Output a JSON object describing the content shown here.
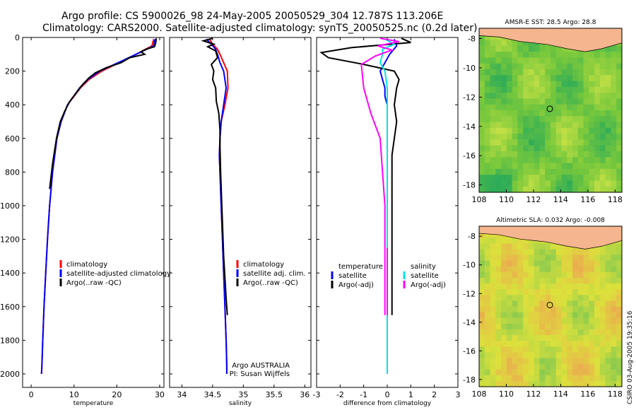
{
  "header": {
    "title_line1": "Argo profile: CS 5900026_98 24-May-2005 20050529_304 12.787S 113.206E",
    "title_line2": "Climatology: CARS2000. Satellite-adjusted climatology: synTS_20050525.nc (0.2d later)"
  },
  "colors": {
    "climatology": "#ff0000",
    "satellite": "#0000ff",
    "argo": "#000000",
    "salinity": "#00e5e5",
    "argo_salinity": "#ff00ff",
    "land": "#f5b58e"
  },
  "chart_data": [
    {
      "type": "line",
      "xlabel": "temperature",
      "ylabel": "",
      "xlim": [
        -2,
        31
      ],
      "ylim": [
        2080,
        0
      ],
      "xticks": [
        0,
        10,
        20,
        30
      ],
      "yticks": [
        0,
        200,
        400,
        600,
        800,
        1000,
        1200,
        1400,
        1600,
        1800,
        2000
      ],
      "legend": [
        "climatology",
        "satellite-adjusted climatology",
        "Argo(..raw -QC)"
      ],
      "series": [
        {
          "name": "climatology",
          "color": "#ff0000",
          "x": [
            28.6,
            28.2,
            24.5,
            20.5,
            16.5,
            13.5,
            11.5,
            10.0,
            8.5,
            7.0,
            6.0,
            5.0,
            4.3,
            3.8,
            3.4,
            3.0,
            2.7,
            2.5,
            2.4
          ],
          "y": [
            10,
            50,
            100,
            150,
            200,
            250,
            300,
            350,
            400,
            500,
            600,
            800,
            1000,
            1200,
            1400,
            1600,
            1800,
            1950,
            2000
          ]
        },
        {
          "name": "satellite-adjusted climatology",
          "color": "#0000ff",
          "x": [
            28.9,
            28.6,
            24.5,
            20.3,
            16.0,
            13.2,
            11.3,
            9.9,
            8.5,
            7.0,
            6.0,
            5.0,
            4.3,
            3.8,
            3.4,
            3.0,
            2.7,
            2.5,
            2.4
          ],
          "y": [
            10,
            50,
            100,
            150,
            200,
            250,
            300,
            350,
            400,
            500,
            600,
            800,
            1000,
            1200,
            1400,
            1600,
            1800,
            1950,
            2000
          ]
        },
        {
          "name": "Argo(..raw -QC)",
          "color": "#000000",
          "x": [
            29.2,
            29.1,
            28.8,
            26.8,
            25.6,
            26.5,
            23.0,
            21.0,
            17.5,
            15.0,
            13.5,
            12.0,
            10.5,
            9.0,
            7.8,
            6.8,
            5.9,
            5.0,
            4.3
          ],
          "y": [
            5,
            30,
            55,
            70,
            85,
            100,
            120,
            150,
            180,
            210,
            240,
            280,
            330,
            380,
            440,
            500,
            600,
            750,
            900
          ]
        }
      ]
    },
    {
      "type": "line",
      "xlabel": "salinity",
      "xlim": [
        33.8,
        36.1
      ],
      "ylim": [
        2080,
        0
      ],
      "xticks": [
        34,
        34.5,
        35,
        35.5,
        36
      ],
      "legend": [
        "climatology",
        "satellite adj. clim.",
        "Argo(..raw -QC)"
      ],
      "annotation": [
        "Argo AUSTRALIA",
        "PI: Susan Wijffels"
      ],
      "series": [
        {
          "name": "climatology",
          "color": "#ff0000",
          "x": [
            34.45,
            34.5,
            34.58,
            34.62,
            34.68,
            34.74,
            34.75,
            34.7,
            34.64,
            34.62,
            34.61,
            34.62,
            34.64,
            34.66,
            34.68,
            34.7,
            34.72,
            34.73,
            34.73
          ],
          "y": [
            10,
            40,
            70,
            100,
            150,
            200,
            300,
            400,
            500,
            600,
            700,
            800,
            1000,
            1200,
            1400,
            1600,
            1800,
            1950,
            2000
          ]
        },
        {
          "name": "satellite adj. clim.",
          "color": "#0000ff",
          "x": [
            34.4,
            34.48,
            34.55,
            34.58,
            34.62,
            34.68,
            34.72,
            34.68,
            34.64,
            34.62,
            34.61,
            34.62,
            34.64,
            34.66,
            34.68,
            34.7,
            34.72,
            34.73,
            34.73
          ],
          "y": [
            10,
            40,
            70,
            100,
            150,
            200,
            300,
            400,
            500,
            600,
            700,
            800,
            1000,
            1200,
            1400,
            1600,
            1800,
            1950,
            2000
          ]
        },
        {
          "name": "Argo(..raw -QC)",
          "color": "#000000",
          "x": [
            34.5,
            34.35,
            34.52,
            34.42,
            34.55,
            34.58,
            34.48,
            34.52,
            34.5,
            34.55,
            34.56,
            34.6,
            34.62,
            34.62,
            34.63,
            34.65,
            34.68,
            34.72,
            34.74
          ],
          "y": [
            5,
            20,
            40,
            55,
            80,
            120,
            160,
            200,
            250,
            300,
            380,
            450,
            550,
            650,
            800,
            1000,
            1300,
            1550,
            1650
          ]
        }
      ]
    },
    {
      "type": "line",
      "xlabel": "difference from climatology",
      "xlim": [
        -3,
        3
      ],
      "ylim": [
        2080,
        0
      ],
      "xticks": [
        -3,
        -2,
        -1,
        0,
        1,
        2,
        3
      ],
      "legend": [
        "temperature",
        "satellite",
        "Argo(-adj)",
        "salinity",
        "satellite",
        "Argo(-adj)"
      ],
      "series": [
        {
          "name": "temperature satellite",
          "color": "#0000ff",
          "x": [
            0.3,
            0.4,
            0.1,
            -0.1,
            -0.3,
            -0.2,
            -0.1,
            -0.1,
            0.0,
            0.0,
            0.0,
            0.0,
            0.0,
            0.0,
            0.0,
            0.0
          ],
          "y": [
            10,
            50,
            100,
            150,
            200,
            250,
            300,
            350,
            400,
            600,
            800,
            1000,
            1200,
            1400,
            1600,
            2000
          ]
        },
        {
          "name": "temperature Argo(-adj)",
          "color": "#000000",
          "x": [
            0.6,
            1.0,
            -1.5,
            -2.8,
            -2.5,
            -1.0,
            0.3,
            0.5,
            0.4,
            0.3,
            0.4,
            0.3,
            0.2,
            0.2,
            0.2,
            0.2,
            0.2
          ],
          "y": [
            5,
            30,
            60,
            90,
            120,
            160,
            200,
            250,
            300,
            400,
            500,
            600,
            700,
            800,
            1000,
            1400,
            1650
          ]
        },
        {
          "name": "salinity satellite",
          "color": "#00e5e5",
          "x": [
            -0.1,
            0.3,
            -0.2,
            -0.2,
            -0.3,
            -0.1,
            0.0,
            0.0,
            0.0,
            0.0,
            0.0,
            0.0,
            0.0,
            0.0,
            0.0
          ],
          "y": [
            10,
            40,
            70,
            100,
            150,
            200,
            300,
            400,
            500,
            700,
            900,
            1100,
            1400,
            1700,
            2000
          ]
        },
        {
          "name": "salinity Argo(-adj)",
          "color": "#ff00ff",
          "x": [
            -0.3,
            0.5,
            -0.4,
            0.2,
            -0.5,
            -1.1,
            -1.0,
            -0.7,
            -0.3,
            -0.2,
            -0.1,
            -0.1,
            -0.1
          ],
          "y": [
            5,
            25,
            50,
            75,
            110,
            160,
            300,
            450,
            600,
            800,
            1000,
            1300,
            1650
          ]
        }
      ]
    },
    {
      "type": "heatmap",
      "title": "AMSR-E SST: 28.5 Argo: 28.8",
      "xlim": [
        108,
        118.5
      ],
      "ylim": [
        -18.5,
        -7.3
      ],
      "xticks": [
        108,
        110,
        112,
        114,
        116,
        118
      ],
      "yticks": [
        -8,
        -10,
        -12,
        -14,
        -16,
        -18
      ],
      "marker": {
        "x": 113.2,
        "y": -12.8
      }
    },
    {
      "type": "heatmap",
      "title": "Altimetric SLA: 0.032 Argo: -0.008",
      "xlim": [
        108,
        118.5
      ],
      "ylim": [
        -18.5,
        -7.3
      ],
      "xticks": [
        108,
        110,
        112,
        114,
        116,
        118
      ],
      "yticks": [
        -8,
        -10,
        -12,
        -14,
        -16,
        -18
      ],
      "marker": {
        "x": 113.2,
        "y": -12.8
      }
    }
  ],
  "footer": {
    "stamp": "CSIRO 03-Aug-2005 19:35:16"
  }
}
